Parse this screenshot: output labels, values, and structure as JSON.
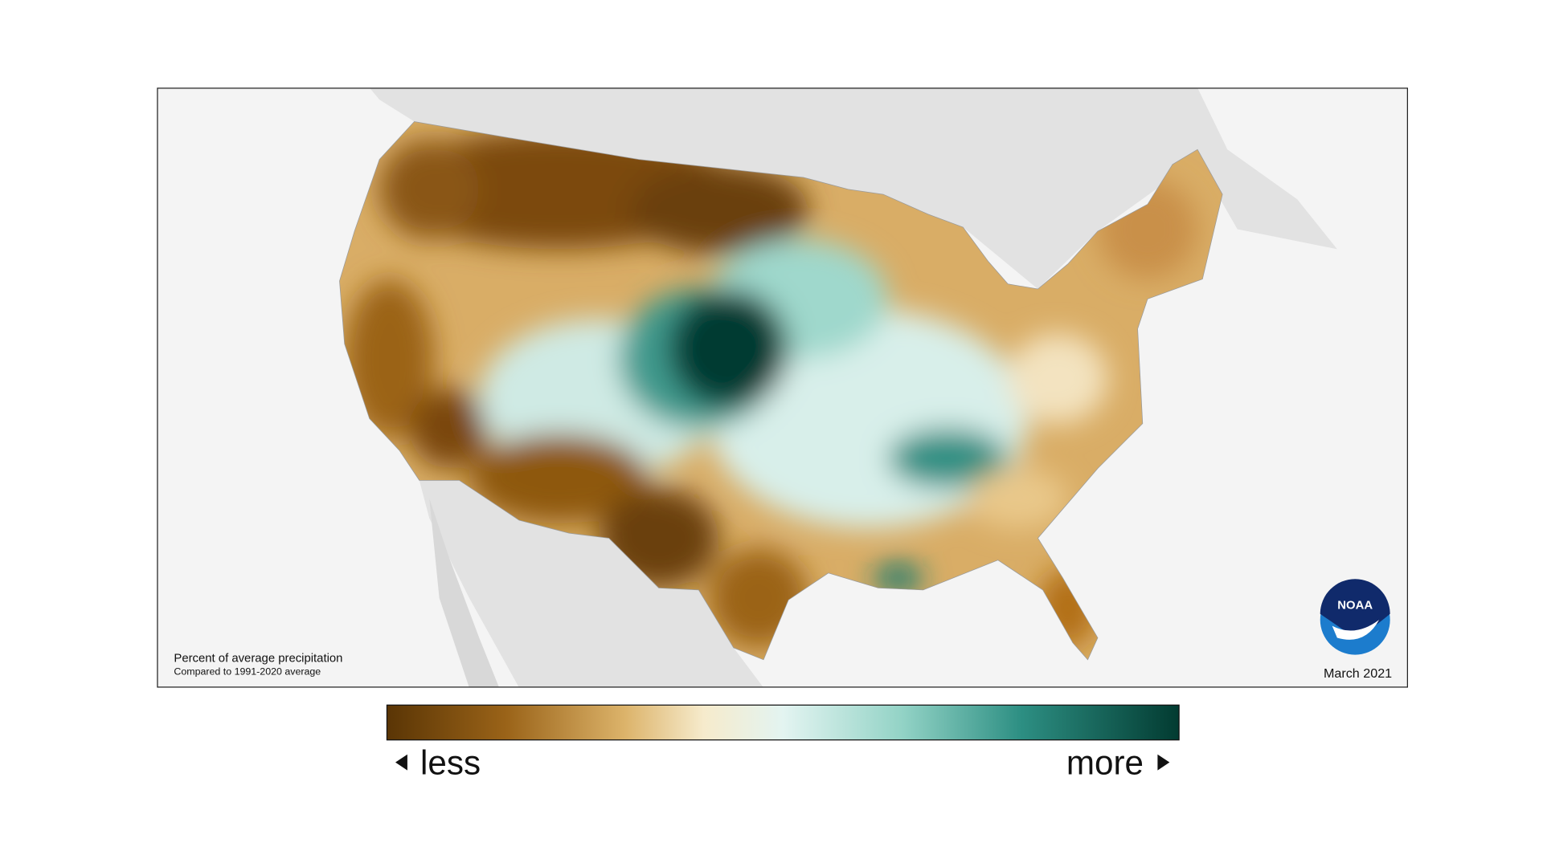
{
  "map": {
    "note": {
      "title": "Percent of average precipitation",
      "subtitle": "Compared to 1991-2020 average"
    },
    "date": "March 2021",
    "legend": {
      "low_label": "less",
      "high_label": "more"
    },
    "logo": "NOAA"
  }
}
